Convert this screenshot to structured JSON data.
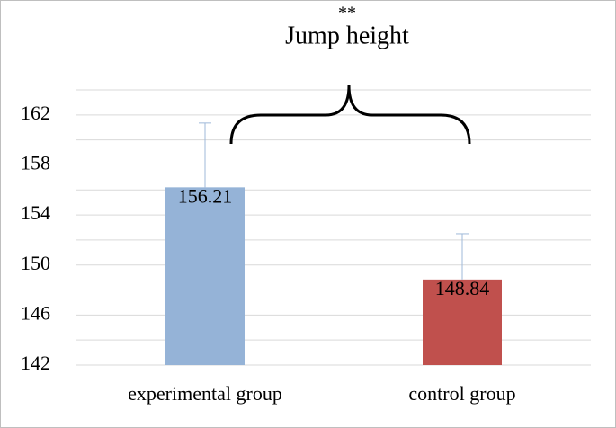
{
  "chart_data": {
    "type": "bar",
    "title": "Jump height",
    "annotation": "**",
    "categories": [
      "experimental group",
      "control group"
    ],
    "values": [
      156.21,
      148.84
    ],
    "errors": [
      5.14,
      3.66
    ],
    "colors": [
      "#95b3d7",
      "#c0504d"
    ],
    "ylim": [
      142,
      164
    ],
    "yticks": [
      142,
      146,
      150,
      154,
      158,
      162
    ],
    "minor_yticks": [
      144,
      148,
      152,
      156,
      160,
      164
    ],
    "grid": true
  }
}
